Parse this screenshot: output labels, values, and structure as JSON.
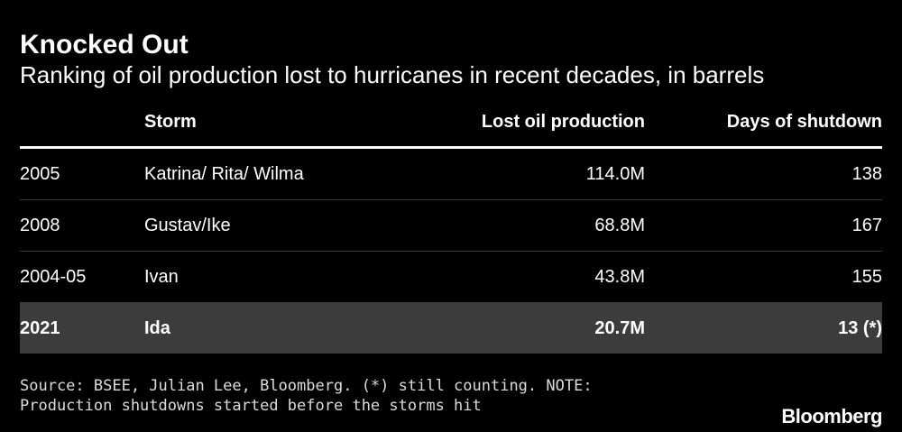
{
  "title": "Knocked Out",
  "subtitle": "Ranking of oil production lost to hurricanes in recent decades, in barrels",
  "chart_data": {
    "type": "table",
    "columns": [
      "",
      "Storm",
      "Lost oil production",
      "Days of shutdown"
    ],
    "rows": [
      {
        "year": "2005",
        "storm": "Katrina/ Rita/ Wilma",
        "lost": "114.0M",
        "days": "138",
        "highlight": false
      },
      {
        "year": "2008",
        "storm": "Gustav/Ike",
        "lost": "68.8M",
        "days": "167",
        "highlight": false
      },
      {
        "year": "2004-05",
        "storm": "Ivan",
        "lost": "43.8M",
        "days": "155",
        "highlight": false
      },
      {
        "year": "2021",
        "storm": "Ida",
        "lost": "20.7M",
        "days": "13 (*)",
        "highlight": true
      }
    ]
  },
  "footer": {
    "source": "Source: BSEE, Julian Lee, Bloomberg. (*) still counting. NOTE: Production shutdowns started before the storms hit",
    "brand": "Bloomberg"
  },
  "colors": {
    "background": "#000000",
    "text": "#ffffff",
    "highlight_row": "#3c3c3c",
    "divider": "#3a3a3a"
  }
}
